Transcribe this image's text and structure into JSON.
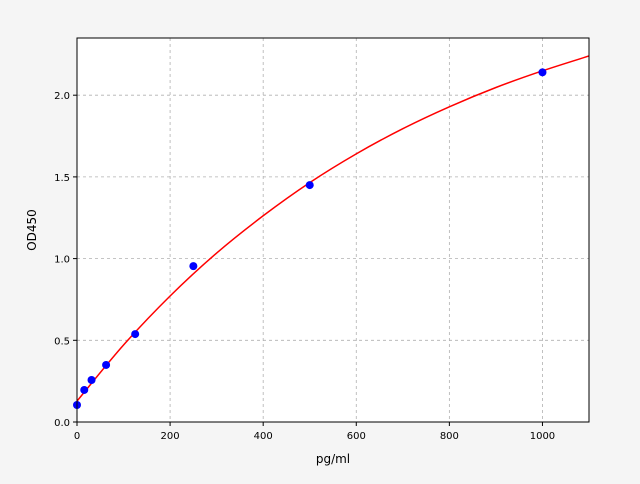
{
  "chart_data": {
    "type": "scatter",
    "title": "",
    "xlabel": "pg/ml",
    "ylabel": "OD450",
    "xlim": [
      0,
      1100
    ],
    "ylim": [
      0,
      2.35
    ],
    "grid": true,
    "x_ticks": [
      0,
      200,
      400,
      600,
      800,
      1000
    ],
    "y_ticks": [
      0.0,
      0.5,
      1.0,
      1.5,
      2.0
    ],
    "x_tick_labels": [
      "0",
      "200",
      "400",
      "600",
      "800",
      "1000"
    ],
    "y_tick_labels": [
      "0.0",
      "0.5",
      "1.0",
      "1.5",
      "2.0"
    ],
    "series": [
      {
        "type": "scatter",
        "color": "#0000ff",
        "x": [
          0,
          15.6,
          31.25,
          62.5,
          125,
          250,
          500,
          1000
        ],
        "y": [
          0.104,
          0.196,
          0.257,
          0.349,
          0.538,
          0.954,
          1.45,
          2.14
        ]
      },
      {
        "type": "line",
        "color": "#ff0000",
        "x": [
          0,
          100,
          200,
          300,
          400,
          500,
          600,
          700,
          800,
          900,
          1000,
          1100
        ],
        "y": [
          0.128,
          0.471,
          0.771,
          1.034,
          1.262,
          1.465,
          1.641,
          1.795,
          1.929,
          2.047,
          2.149,
          2.24
        ]
      }
    ]
  }
}
